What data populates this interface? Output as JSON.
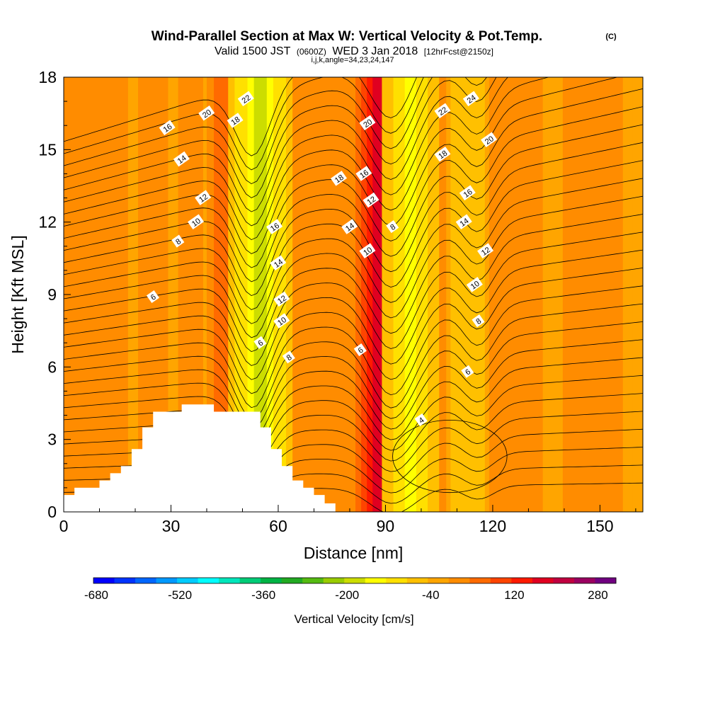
{
  "header": {
    "title": "Wind-Parallel Section at Max W: Vertical Velocity & Pot.Temp.",
    "copyright": "(C)",
    "valid_prefix": "Valid 1500 JST",
    "valid_utc": "(0600Z)",
    "valid_date": "WED 3 Jan 2018",
    "forecast": "[12hrFcst@2150z]",
    "indices": "i,j,k,angle=34,23,24,147"
  },
  "chart_data": {
    "type": "heatmap",
    "xlabel": "Distance [nm]",
    "ylabel": "Height [Kft MSL]",
    "xlim": [
      0,
      162
    ],
    "ylim": [
      0,
      18
    ],
    "x_ticks": [
      0,
      30,
      60,
      90,
      120,
      150
    ],
    "y_ticks": [
      0,
      3,
      6,
      9,
      12,
      15,
      18
    ],
    "colorbar": {
      "label": "Vertical Velocity [cm/s]",
      "ticks": [
        -680,
        -520,
        -360,
        -200,
        -40,
        120,
        280
      ],
      "range": [
        -680,
        320
      ],
      "colors": [
        "#0000ff",
        "#0033ff",
        "#0066ff",
        "#0099ff",
        "#00ccff",
        "#00ffff",
        "#00e6bb",
        "#00cc77",
        "#00b344",
        "#22aa22",
        "#55bb11",
        "#99cc00",
        "#ccdd00",
        "#ffff00",
        "#ffe000",
        "#ffc000",
        "#ffa500",
        "#ff8c00",
        "#ff6a00",
        "#ff4400",
        "#ff1a00",
        "#e00020",
        "#c00040",
        "#9a0060",
        "#700080"
      ]
    },
    "velocity_columns": [
      {
        "x": 25,
        "w": 7,
        "value": 30
      },
      {
        "x": 44,
        "w": 5,
        "value": 60
      },
      {
        "x": 55,
        "w": 9,
        "value": -170
      },
      {
        "x": 88,
        "w": 8,
        "value": 160
      },
      {
        "x": 97,
        "w": 8,
        "value": -140
      },
      {
        "x": 113,
        "w": 6,
        "value": -60
      },
      {
        "x": 148,
        "w": 14,
        "value": 20
      }
    ],
    "terrain": [
      {
        "x": 0,
        "h": 0.7
      },
      {
        "x": 3,
        "h": 1.0
      },
      {
        "x": 10,
        "h": 1.3
      },
      {
        "x": 13,
        "h": 1.6
      },
      {
        "x": 16,
        "h": 1.9
      },
      {
        "x": 19,
        "h": 2.6
      },
      {
        "x": 22,
        "h": 3.5
      },
      {
        "x": 25,
        "h": 4.15
      },
      {
        "x": 33,
        "h": 4.45
      },
      {
        "x": 42,
        "h": 4.15
      },
      {
        "x": 55,
        "h": 3.5
      },
      {
        "x": 58,
        "h": 2.6
      },
      {
        "x": 61,
        "h": 1.9
      },
      {
        "x": 64,
        "h": 1.3
      },
      {
        "x": 67,
        "h": 1.0
      },
      {
        "x": 70,
        "h": 0.7
      },
      {
        "x": 73,
        "h": 0.35
      },
      {
        "x": 76,
        "h": 0
      }
    ],
    "theta_contours": {
      "base_levels": [
        2,
        4,
        6,
        8,
        10,
        12,
        14,
        16,
        18,
        20,
        22,
        24,
        26,
        28
      ],
      "labels": [
        {
          "text": "16",
          "x": 29,
          "y": 15.9
        },
        {
          "text": "20",
          "x": 40,
          "y": 16.5
        },
        {
          "text": "22",
          "x": 51,
          "y": 17.1
        },
        {
          "text": "18",
          "x": 48,
          "y": 16.2
        },
        {
          "text": "14",
          "x": 33,
          "y": 14.6
        },
        {
          "text": "12",
          "x": 39,
          "y": 13.0
        },
        {
          "text": "10",
          "x": 37,
          "y": 12.0
        },
        {
          "text": "8",
          "x": 32,
          "y": 11.2
        },
        {
          "text": "6",
          "x": 25,
          "y": 8.9
        },
        {
          "text": "16",
          "x": 59,
          "y": 11.8
        },
        {
          "text": "14",
          "x": 60,
          "y": 10.3
        },
        {
          "text": "12",
          "x": 61,
          "y": 8.8
        },
        {
          "text": "10",
          "x": 61,
          "y": 7.9
        },
        {
          "text": "6",
          "x": 55,
          "y": 7.0
        },
        {
          "text": "8",
          "x": 63,
          "y": 6.4
        },
        {
          "text": "20",
          "x": 85,
          "y": 16.1
        },
        {
          "text": "18",
          "x": 77,
          "y": 13.8
        },
        {
          "text": "16",
          "x": 84,
          "y": 14.0
        },
        {
          "text": "12",
          "x": 86,
          "y": 12.9
        },
        {
          "text": "14",
          "x": 80,
          "y": 11.8
        },
        {
          "text": "8",
          "x": 92,
          "y": 11.8
        },
        {
          "text": "10",
          "x": 85,
          "y": 10.8
        },
        {
          "text": "6",
          "x": 83,
          "y": 6.7
        },
        {
          "text": "22",
          "x": 106,
          "y": 16.6
        },
        {
          "text": "24",
          "x": 114,
          "y": 17.1
        },
        {
          "text": "20",
          "x": 119,
          "y": 15.4
        },
        {
          "text": "18",
          "x": 106,
          "y": 14.8
        },
        {
          "text": "16",
          "x": 113,
          "y": 13.2
        },
        {
          "text": "14",
          "x": 112,
          "y": 12.0
        },
        {
          "text": "12",
          "x": 118,
          "y": 10.8
        },
        {
          "text": "10",
          "x": 115,
          "y": 9.4
        },
        {
          "text": "8",
          "x": 116,
          "y": 7.9
        },
        {
          "text": "6",
          "x": 113,
          "y": 5.8
        },
        {
          "text": "4",
          "x": 100,
          "y": 3.8
        }
      ]
    }
  }
}
